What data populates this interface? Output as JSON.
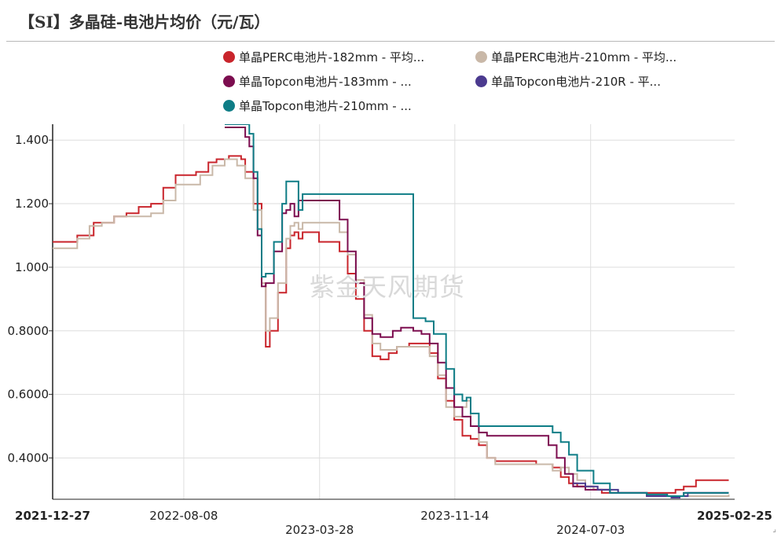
{
  "title": "【SI】多晶硅-电池片均价（元/瓦）",
  "watermark": "紫金天风期货",
  "chart_data": {
    "type": "line",
    "ylim": [
      0.27,
      1.45
    ],
    "yticks": [
      "0.4000",
      "0.6000",
      "0.8000",
      "1.000",
      "1.200",
      "1.400"
    ],
    "ytick_values": [
      0.4,
      0.6,
      0.8,
      1.0,
      1.2,
      1.4
    ],
    "xlim": [
      "2021-12-27",
      "2025-03-06"
    ],
    "xticks": [
      {
        "label": "2021-12-27",
        "date": "2021-12-27",
        "row": 0,
        "bold": true
      },
      {
        "label": "2022-08-08",
        "date": "2022-08-08",
        "row": 0,
        "bold": false
      },
      {
        "label": "2023-03-28",
        "date": "2023-03-28",
        "row": 1,
        "bold": false
      },
      {
        "label": "2023-11-14",
        "date": "2023-11-14",
        "row": 0,
        "bold": false
      },
      {
        "label": "2024-07-03",
        "date": "2024-07-03",
        "row": 1,
        "bold": false
      },
      {
        "label": "2025-02-25",
        "date": "2025-02-25",
        "row": 0,
        "bold": true
      }
    ],
    "grid": true,
    "legend_position": "top",
    "series": [
      {
        "name": "单晶PERC电池片-182mm - 平均...",
        "color": "#c9252c",
        "points": [
          [
            "2021-12-27",
            1.08
          ],
          [
            "2022-01-31",
            1.08
          ],
          [
            "2022-02-07",
            1.1
          ],
          [
            "2022-03-07",
            1.14
          ],
          [
            "2022-04-04",
            1.14
          ],
          [
            "2022-04-11",
            1.16
          ],
          [
            "2022-05-02",
            1.17
          ],
          [
            "2022-05-23",
            1.19
          ],
          [
            "2022-06-13",
            1.2
          ],
          [
            "2022-07-04",
            1.25
          ],
          [
            "2022-07-25",
            1.29
          ],
          [
            "2022-08-29",
            1.3
          ],
          [
            "2022-09-19",
            1.33
          ],
          [
            "2022-10-03",
            1.34
          ],
          [
            "2022-10-24",
            1.35
          ],
          [
            "2022-11-14",
            1.34
          ],
          [
            "2022-11-21",
            1.3
          ],
          [
            "2022-12-05",
            1.2
          ],
          [
            "2022-12-19",
            0.95
          ],
          [
            "2022-12-26",
            0.75
          ],
          [
            "2023-01-02",
            0.8
          ],
          [
            "2023-01-16",
            0.92
          ],
          [
            "2023-01-30",
            1.06
          ],
          [
            "2023-02-06",
            1.1
          ],
          [
            "2023-02-13",
            1.11
          ],
          [
            "2023-02-20",
            1.09
          ],
          [
            "2023-02-27",
            1.11
          ],
          [
            "2023-03-13",
            1.11
          ],
          [
            "2023-03-27",
            1.08
          ],
          [
            "2023-04-24",
            1.08
          ],
          [
            "2023-05-01",
            1.05
          ],
          [
            "2023-05-15",
            0.98
          ],
          [
            "2023-05-29",
            0.9
          ],
          [
            "2023-06-12",
            0.8
          ],
          [
            "2023-06-26",
            0.72
          ],
          [
            "2023-07-10",
            0.71
          ],
          [
            "2023-07-24",
            0.73
          ],
          [
            "2023-08-07",
            0.75
          ],
          [
            "2023-08-28",
            0.76
          ],
          [
            "2023-09-18",
            0.76
          ],
          [
            "2023-10-02",
            0.73
          ],
          [
            "2023-10-16",
            0.65
          ],
          [
            "2023-10-30",
            0.58
          ],
          [
            "2023-11-13",
            0.52
          ],
          [
            "2023-11-27",
            0.47
          ],
          [
            "2023-12-11",
            0.46
          ],
          [
            "2023-12-25",
            0.44
          ],
          [
            "2024-01-08",
            0.4
          ],
          [
            "2024-01-22",
            0.39
          ],
          [
            "2024-02-19",
            0.39
          ],
          [
            "2024-03-04",
            0.39
          ],
          [
            "2024-04-01",
            0.38
          ],
          [
            "2024-04-29",
            0.37
          ],
          [
            "2024-05-13",
            0.34
          ],
          [
            "2024-05-27",
            0.32
          ],
          [
            "2024-06-10",
            0.31
          ],
          [
            "2024-06-24",
            0.31
          ],
          [
            "2024-07-08",
            0.3
          ],
          [
            "2024-07-22",
            0.29
          ],
          [
            "2024-09-02",
            0.29
          ],
          [
            "2024-10-07",
            0.29
          ],
          [
            "2024-11-11",
            0.29
          ],
          [
            "2024-11-25",
            0.3
          ],
          [
            "2024-12-09",
            0.31
          ],
          [
            "2024-12-30",
            0.33
          ],
          [
            "2025-02-24",
            0.33
          ]
        ]
      },
      {
        "name": "单晶PERC电池片-210mm - 平均...",
        "color": "#c9b8a8",
        "points": [
          [
            "2021-12-27",
            1.06
          ],
          [
            "2022-01-24",
            1.06
          ],
          [
            "2022-02-07",
            1.09
          ],
          [
            "2022-02-28",
            1.13
          ],
          [
            "2022-03-21",
            1.14
          ],
          [
            "2022-04-11",
            1.16
          ],
          [
            "2022-05-09",
            1.16
          ],
          [
            "2022-06-13",
            1.17
          ],
          [
            "2022-07-04",
            1.21
          ],
          [
            "2022-07-25",
            1.26
          ],
          [
            "2022-08-22",
            1.26
          ],
          [
            "2022-09-05",
            1.29
          ],
          [
            "2022-09-26",
            1.32
          ],
          [
            "2022-10-17",
            1.34
          ],
          [
            "2022-11-07",
            1.32
          ],
          [
            "2022-11-21",
            1.28
          ],
          [
            "2022-12-05",
            1.18
          ],
          [
            "2022-12-19",
            0.95
          ],
          [
            "2022-12-26",
            0.8
          ],
          [
            "2023-01-02",
            0.84
          ],
          [
            "2023-01-16",
            0.95
          ],
          [
            "2023-01-30",
            1.09
          ],
          [
            "2023-02-06",
            1.13
          ],
          [
            "2023-02-13",
            1.14
          ],
          [
            "2023-02-20",
            1.12
          ],
          [
            "2023-02-27",
            1.14
          ],
          [
            "2023-03-13",
            1.14
          ],
          [
            "2023-04-24",
            1.14
          ],
          [
            "2023-05-01",
            1.11
          ],
          [
            "2023-05-15",
            1.04
          ],
          [
            "2023-05-29",
            0.96
          ],
          [
            "2023-06-12",
            0.85
          ],
          [
            "2023-06-26",
            0.76
          ],
          [
            "2023-07-10",
            0.74
          ],
          [
            "2023-07-24",
            0.74
          ],
          [
            "2023-08-07",
            0.75
          ],
          [
            "2023-09-18",
            0.75
          ],
          [
            "2023-10-02",
            0.72
          ],
          [
            "2023-10-16",
            0.66
          ],
          [
            "2023-10-30",
            0.56
          ],
          [
            "2023-11-13",
            0.53
          ],
          [
            "2023-11-27",
            0.56
          ],
          [
            "2023-12-04",
            0.58
          ],
          [
            "2023-12-11",
            0.5
          ],
          [
            "2023-12-25",
            0.45
          ],
          [
            "2024-01-08",
            0.4
          ],
          [
            "2024-01-22",
            0.38
          ],
          [
            "2024-02-26",
            0.38
          ],
          [
            "2024-03-11",
            0.38
          ],
          [
            "2024-04-08",
            0.38
          ],
          [
            "2024-04-29",
            0.36
          ],
          [
            "2024-05-13",
            0.37
          ],
          [
            "2024-05-27",
            0.35
          ],
          [
            "2024-06-10",
            0.33
          ],
          [
            "2024-06-24",
            0.31
          ],
          [
            "2024-07-08",
            0.3
          ],
          [
            "2024-08-05",
            0.29
          ],
          [
            "2024-09-02",
            0.29
          ],
          [
            "2024-10-07",
            0.28
          ],
          [
            "2024-11-11",
            0.28
          ],
          [
            "2024-12-09",
            0.28
          ],
          [
            "2025-02-24",
            0.285
          ]
        ]
      },
      {
        "name": "单晶Topcon电池片-183mm - ...",
        "color": "#7c0d4f",
        "points": [
          [
            "2022-10-17",
            1.44
          ],
          [
            "2022-11-14",
            1.44
          ],
          [
            "2022-11-21",
            1.41
          ],
          [
            "2022-11-28",
            1.38
          ],
          [
            "2022-12-05",
            1.28
          ],
          [
            "2022-12-12",
            1.1
          ],
          [
            "2022-12-19",
            0.94
          ],
          [
            "2022-12-26",
            0.95
          ],
          [
            "2023-01-09",
            1.05
          ],
          [
            "2023-01-23",
            1.17
          ],
          [
            "2023-01-30",
            1.18
          ],
          [
            "2023-02-06",
            1.2
          ],
          [
            "2023-02-13",
            1.16
          ],
          [
            "2023-02-20",
            1.21
          ],
          [
            "2023-03-13",
            1.21
          ],
          [
            "2023-04-03",
            1.21
          ],
          [
            "2023-04-17",
            1.21
          ],
          [
            "2023-05-01",
            1.15
          ],
          [
            "2023-05-15",
            1.05
          ],
          [
            "2023-05-29",
            0.95
          ],
          [
            "2023-06-12",
            0.84
          ],
          [
            "2023-06-26",
            0.79
          ],
          [
            "2023-07-10",
            0.78
          ],
          [
            "2023-07-31",
            0.8
          ],
          [
            "2023-08-14",
            0.81
          ],
          [
            "2023-09-04",
            0.8
          ],
          [
            "2023-09-18",
            0.79
          ],
          [
            "2023-10-02",
            0.76
          ],
          [
            "2023-10-16",
            0.7
          ],
          [
            "2023-10-30",
            0.62
          ],
          [
            "2023-11-13",
            0.56
          ],
          [
            "2023-11-27",
            0.53
          ],
          [
            "2023-12-11",
            0.5
          ],
          [
            "2023-12-25",
            0.48
          ],
          [
            "2024-01-08",
            0.47
          ],
          [
            "2024-03-04",
            0.47
          ],
          [
            "2024-04-01",
            0.47
          ],
          [
            "2024-04-22",
            0.44
          ],
          [
            "2024-05-06",
            0.4
          ],
          [
            "2024-05-20",
            0.35
          ],
          [
            "2024-06-03",
            0.31
          ],
          [
            "2024-06-24",
            0.3
          ],
          [
            "2024-07-08",
            0.3
          ],
          [
            "2024-08-05",
            0.29
          ],
          [
            "2024-09-02",
            0.29
          ],
          [
            "2024-10-07",
            0.28
          ],
          [
            "2024-11-11",
            0.28
          ],
          [
            "2024-12-09",
            0.29
          ],
          [
            "2025-02-24",
            0.29
          ]
        ]
      },
      {
        "name": "单晶Topcon电池片-210R - 平...",
        "color": "#4b3a8f",
        "points": [
          [
            "2024-06-03",
            0.32
          ],
          [
            "2024-06-24",
            0.31
          ],
          [
            "2024-07-15",
            0.3
          ],
          [
            "2024-08-19",
            0.29
          ],
          [
            "2024-10-07",
            0.28
          ],
          [
            "2024-11-04",
            0.28
          ],
          [
            "2024-11-18",
            0.275
          ],
          [
            "2024-12-02",
            0.28
          ],
          [
            "2024-12-16",
            0.29
          ],
          [
            "2025-01-06",
            0.29
          ],
          [
            "2025-02-24",
            0.29
          ]
        ]
      },
      {
        "name": "单晶Topcon电池片-210mm - ...",
        "color": "#0e7d86",
        "points": [
          [
            "2022-10-17",
            1.45
          ],
          [
            "2022-11-21",
            1.45
          ],
          [
            "2022-11-28",
            1.42
          ],
          [
            "2022-12-05",
            1.3
          ],
          [
            "2022-12-12",
            1.12
          ],
          [
            "2022-12-19",
            0.97
          ],
          [
            "2022-12-26",
            0.98
          ],
          [
            "2023-01-09",
            1.08
          ],
          [
            "2023-01-23",
            1.2
          ],
          [
            "2023-01-30",
            1.27
          ],
          [
            "2023-02-13",
            1.27
          ],
          [
            "2023-02-20",
            1.18
          ],
          [
            "2023-02-27",
            1.23
          ],
          [
            "2023-03-13",
            1.23
          ],
          [
            "2023-08-28",
            1.23
          ],
          [
            "2023-09-04",
            0.84
          ],
          [
            "2023-09-25",
            0.83
          ],
          [
            "2023-10-09",
            0.79
          ],
          [
            "2023-10-30",
            0.68
          ],
          [
            "2023-11-13",
            0.6
          ],
          [
            "2023-11-27",
            0.58
          ],
          [
            "2023-12-04",
            0.59
          ],
          [
            "2023-12-11",
            0.54
          ],
          [
            "2023-12-25",
            0.5
          ],
          [
            "2024-02-26",
            0.5
          ],
          [
            "2024-04-08",
            0.5
          ],
          [
            "2024-04-29",
            0.48
          ],
          [
            "2024-05-13",
            0.45
          ],
          [
            "2024-05-27",
            0.41
          ],
          [
            "2024-06-10",
            0.36
          ],
          [
            "2024-07-08",
            0.32
          ],
          [
            "2024-08-05",
            0.29
          ],
          [
            "2024-09-02",
            0.29
          ],
          [
            "2024-10-07",
            0.285
          ],
          [
            "2024-11-11",
            0.28
          ],
          [
            "2024-12-09",
            0.29
          ],
          [
            "2025-02-24",
            0.29
          ]
        ]
      }
    ]
  }
}
